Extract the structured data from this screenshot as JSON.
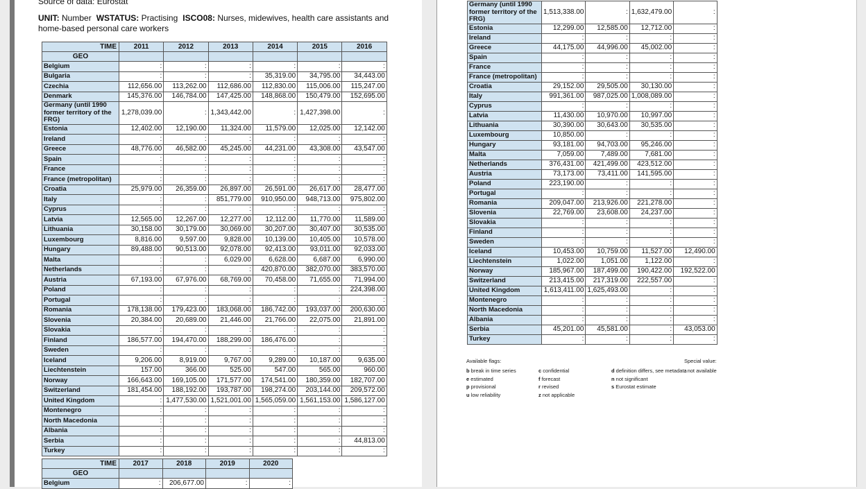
{
  "page1": {
    "source_line": "Source of data: Eurostat",
    "unit_label": "UNIT:",
    "unit_value": "Number",
    "wstatus_label": "WSTATUS:",
    "wstatus_value": "Practising",
    "isco_label": "ISCO08:",
    "isco_value": "Nurses, midewives, health care assistants and home-based personal care workers"
  },
  "colors": {
    "header_blue": "#cfe2f0",
    "table_border": "#555555",
    "page_background": "#ffffff",
    "app_background": "#ececec"
  },
  "table1": {
    "time_label": "TIME",
    "geo_label": "GEO",
    "years": [
      "2011",
      "2012",
      "2013",
      "2014",
      "2015",
      "2016"
    ],
    "rows": [
      [
        "Belgium",
        ":",
        ":",
        ":",
        ":",
        ":",
        ":"
      ],
      [
        "Bulgaria",
        ":",
        ":",
        ":",
        "35,319.00",
        "34,795.00",
        "34,443.00"
      ],
      [
        "Czechia",
        "112,656.00",
        "113,262.00",
        "112,686.00",
        "112,830.00",
        "115,006.00",
        "115,247.00"
      ],
      [
        "Denmark",
        "145,376.00",
        "146,784.00",
        "147,425.00",
        "148,868.00",
        "150,479.00",
        "152,695.00"
      ],
      [
        "Germany (until 1990 former territory of the FRG)",
        "1,278,039.00",
        ":",
        "1,343,442.00",
        ":",
        "1,427,398.00",
        ":"
      ],
      [
        "Estonia",
        "12,402.00",
        "12,190.00",
        "11,324.00",
        "11,579.00",
        "12,025.00",
        "12,142.00"
      ],
      [
        "Ireland",
        ":",
        ":",
        ":",
        ":",
        ":",
        ":"
      ],
      [
        "Greece",
        "48,776.00",
        "46,582.00",
        "45,245.00",
        "44,231.00",
        "43,308.00",
        "43,547.00"
      ],
      [
        "Spain",
        ":",
        ":",
        ":",
        ":",
        ":",
        ":"
      ],
      [
        "France",
        ":",
        ":",
        ":",
        ":",
        ":",
        ":"
      ],
      [
        "France (metropolitan)",
        ":",
        ":",
        ":",
        ":",
        ":",
        ":"
      ],
      [
        "Croatia",
        "25,979.00",
        "26,359.00",
        "26,897.00",
        "26,591.00",
        "26,617.00",
        "28,477.00"
      ],
      [
        "Italy",
        ":",
        ":",
        "851,779.00",
        "910,950.00",
        "948,713.00",
        "975,802.00"
      ],
      [
        "Cyprus",
        ":",
        ":",
        ":",
        ":",
        ":",
        ":"
      ],
      [
        "Latvia",
        "12,565.00",
        "12,267.00",
        "12,277.00",
        "12,112.00",
        "11,770.00",
        "11,589.00"
      ],
      [
        "Lithuania",
        "30,158.00",
        "30,179.00",
        "30,069.00",
        "30,207.00",
        "30,407.00",
        "30,535.00"
      ],
      [
        "Luxembourg",
        "8,816.00",
        "9,597.00",
        "9,828.00",
        "10,139.00",
        "10,405.00",
        "10,578.00"
      ],
      [
        "Hungary",
        "89,488.00",
        "90,513.00",
        "92,078.00",
        "92,413.00",
        "93,011.00",
        "92,033.00"
      ],
      [
        "Malta",
        ":",
        ":",
        "6,029.00",
        "6,628.00",
        "6,687.00",
        "6,990.00"
      ],
      [
        "Netherlands",
        ":",
        ":",
        ":",
        "420,870.00",
        "382,070.00",
        "383,570.00"
      ],
      [
        "Austria",
        "67,193.00",
        "67,976.00",
        "68,769.00",
        "70,458.00",
        "71,655.00",
        "71,994.00"
      ],
      [
        "Poland",
        ":",
        ":",
        ":",
        ":",
        ":",
        "224,398.00"
      ],
      [
        "Portugal",
        ":",
        ":",
        ":",
        ":",
        ":",
        ":"
      ],
      [
        "Romania",
        "178,138.00",
        "179,423.00",
        "183,068.00",
        "186,742.00",
        "193,037.00",
        "200,630.00"
      ],
      [
        "Slovenia",
        "20,384.00",
        "20,689.00",
        "21,446.00",
        "21,766.00",
        "22,075.00",
        "21,891.00"
      ],
      [
        "Slovakia",
        ":",
        ":",
        ":",
        ":",
        ":",
        ":"
      ],
      [
        "Finland",
        "186,577.00",
        "194,470.00",
        "188,299.00",
        "186,476.00",
        ":",
        ":"
      ],
      [
        "Sweden",
        ":",
        ":",
        ":",
        ":",
        ":",
        ":"
      ],
      [
        "Iceland",
        "9,206.00",
        "8,919.00",
        "9,767.00",
        "9,289.00",
        "10,187.00",
        "9,635.00"
      ],
      [
        "Liechtenstein",
        "157.00",
        "366.00",
        "525.00",
        "547.00",
        "565.00",
        "960.00"
      ],
      [
        "Norway",
        "166,643.00",
        "169,105.00",
        "171,577.00",
        "174,541.00",
        "180,359.00",
        "182,707.00"
      ],
      [
        "Switzerland",
        "181,454.00",
        "188,192.00",
        "193,787.00",
        "198,274.00",
        "203,144.00",
        "209,572.00"
      ],
      [
        "United Kingdom",
        ":",
        "1,477,530.00",
        "1,521,001.00",
        "1,565,059.00",
        "1,561,153.00",
        "1,586,127.00"
      ],
      [
        "Montenegro",
        ":",
        ":",
        ":",
        ":",
        ":",
        ":"
      ],
      [
        "North Macedonia",
        ":",
        ":",
        ":",
        ":",
        ":",
        ":"
      ],
      [
        "Albania",
        ":",
        ":",
        ":",
        ":",
        ":",
        ":"
      ],
      [
        "Serbia",
        ":",
        ":",
        ":",
        ":",
        ":",
        "44,813.00"
      ],
      [
        "Turkey",
        ":",
        ":",
        ":",
        ":",
        ":",
        ":"
      ]
    ]
  },
  "table2": {
    "time_label": "TIME",
    "geo_label": "GEO",
    "years": [
      "2017",
      "2018",
      "2019",
      "2020"
    ],
    "rows": [
      [
        "Belgium",
        ":",
        "206,677.00",
        ":",
        ":"
      ]
    ]
  },
  "table3": {
    "rows": [
      [
        "Germany (until 1990 former territory of the FRG)",
        "1,513,338.00",
        ":",
        "1,632,479.00",
        ":"
      ],
      [
        "Estonia",
        "12,299.00",
        "12,585.00",
        "12,712.00",
        ":"
      ],
      [
        "Ireland",
        ":",
        ":",
        ":",
        ":"
      ],
      [
        "Greece",
        "44,175.00",
        "44,996.00",
        "45,002.00",
        ":"
      ],
      [
        "Spain",
        ":",
        ":",
        ":",
        ":"
      ],
      [
        "France",
        ":",
        ":",
        ":",
        ":"
      ],
      [
        "France (metropolitan)",
        ":",
        ":",
        ":",
        ":"
      ],
      [
        "Croatia",
        "29,152.00",
        "29,505.00",
        "30,130.00",
        ":"
      ],
      [
        "Italy",
        "991,361.00",
        "987,025.00",
        "1,008,089.00",
        ":"
      ],
      [
        "Cyprus",
        ":",
        ":",
        ":",
        ":"
      ],
      [
        "Latvia",
        "11,430.00",
        "10,970.00",
        "10,997.00",
        ":"
      ],
      [
        "Lithuania",
        "30,390.00",
        "30,643.00",
        "30,535.00",
        ":"
      ],
      [
        "Luxembourg",
        "10,850.00",
        ":",
        ":",
        ":"
      ],
      [
        "Hungary",
        "93,181.00",
        "94,703.00",
        "95,246.00",
        ":"
      ],
      [
        "Malta",
        "7,059.00",
        "7,489.00",
        "7,681.00",
        ":"
      ],
      [
        "Netherlands",
        "376,431.00",
        "421,499.00",
        "423,512.00",
        ":"
      ],
      [
        "Austria",
        "73,173.00",
        "73,411.00",
        "141,595.00",
        ":"
      ],
      [
        "Poland",
        "223,190.00",
        ":",
        ":",
        ":"
      ],
      [
        "Portugal",
        ":",
        ":",
        ":",
        ":"
      ],
      [
        "Romania",
        "209,047.00",
        "213,926.00",
        "221,278.00",
        ":"
      ],
      [
        "Slovenia",
        "22,769.00",
        "23,608.00",
        "24,237.00",
        ":"
      ],
      [
        "Slovakia",
        ":",
        ":",
        ":",
        ":"
      ],
      [
        "Finland",
        ":",
        ":",
        ":",
        ":"
      ],
      [
        "Sweden",
        ":",
        ":",
        ":",
        ":"
      ],
      [
        "Iceland",
        "10,453.00",
        "10,759.00",
        "11,527.00",
        "12,490.00"
      ],
      [
        "Liechtenstein",
        "1,022.00",
        "1,051.00",
        "1,122.00",
        ":"
      ],
      [
        "Norway",
        "185,967.00",
        "187,499.00",
        "190,422.00",
        "192,522.00"
      ],
      [
        "Switzerland",
        "213,415.00",
        "217,319.00",
        "222,557.00",
        ":"
      ],
      [
        "United Kingdom",
        "1,613,411.00",
        "1,625,493.00",
        ":",
        ":"
      ],
      [
        "Montenegro",
        ":",
        ":",
        ":",
        ":"
      ],
      [
        "North Macedonia",
        ":",
        ":",
        ":",
        ":"
      ],
      [
        "Albania",
        ":",
        ":",
        ":",
        ":"
      ],
      [
        "Serbia",
        "45,201.00",
        "45,581.00",
        ":",
        "43,053.00"
      ],
      [
        "Turkey",
        ":",
        ":",
        ":",
        ":"
      ]
    ]
  },
  "legend": {
    "available_flags_title": "Available flags:",
    "special_value_title": "Special value:",
    "col1": [
      {
        "k": "b",
        "v": "break in time series"
      },
      {
        "k": "e",
        "v": "estimated"
      },
      {
        "k": "p",
        "v": "provisional"
      },
      {
        "k": "u",
        "v": "low reliability"
      }
    ],
    "col2": [
      {
        "k": "c",
        "v": "confidential"
      },
      {
        "k": "f",
        "v": "forecast"
      },
      {
        "k": "r",
        "v": "revised"
      },
      {
        "k": "z",
        "v": "not applicable"
      }
    ],
    "col3": [
      {
        "k": "d",
        "v": "definition differs, see metadata"
      },
      {
        "k": "n",
        "v": "not significant"
      },
      {
        "k": "s",
        "v": "Eurostat estimate"
      }
    ],
    "special": [
      {
        "k": ":",
        "v": "not available"
      }
    ]
  }
}
